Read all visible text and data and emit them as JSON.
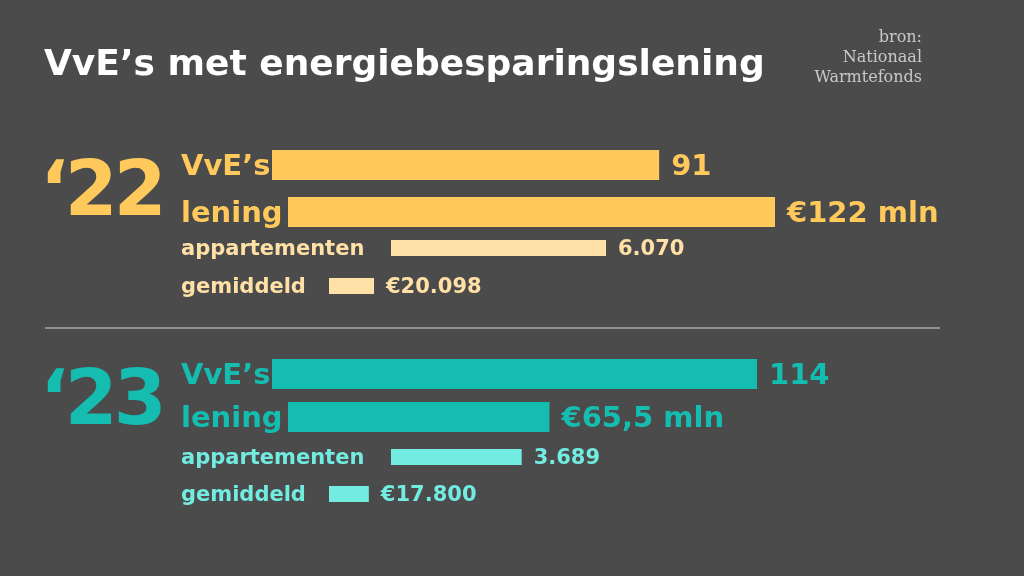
{
  "chart_data": [
    {
      "type": "bar",
      "orientation": "horizontal",
      "title": "VvE’s met energiebesparingslening",
      "subtitle": "‘22",
      "annotations": [
        "bron: Nationaal Warmtefonds"
      ],
      "categories": [
        "VvE’s"
      ],
      "values": [
        91
      ],
      "value_labels": [
        "91"
      ],
      "tick_labels": "y",
      "colors": [
        "#ffc95c"
      ]
    },
    {
      "type": "bar",
      "orientation": "horizontal",
      "categories": [
        "lening"
      ],
      "values": [
        122
      ],
      "value_labels": [
        "€122 mln"
      ],
      "tick_labels": "y",
      "colors": [
        "#ffc95c"
      ]
    },
    {
      "type": "bar",
      "orientation": "horizontal",
      "categories": [
        "appartementen"
      ],
      "values": [
        6070
      ],
      "value_labels": [
        "6.070"
      ],
      "tick_labels": "y",
      "colors": [
        "#ffe0a6"
      ]
    },
    {
      "type": "bar",
      "orientation": "horizontal",
      "categories": [
        "gemiddeld"
      ],
      "values": [
        20098
      ],
      "value_labels": [
        "€20.098"
      ],
      "tick_labels": "y",
      "colors": [
        "#ffe0a6"
      ]
    },
    {
      "type": "bar",
      "orientation": "horizontal",
      "subtitle": "‘23",
      "categories": [
        "VvE’s"
      ],
      "values": [
        114
      ],
      "value_labels": [
        "114"
      ],
      "tick_labels": "y",
      "colors": [
        "#14bdb0"
      ]
    },
    {
      "type": "bar",
      "orientation": "horizontal",
      "categories": [
        "lening"
      ],
      "values": [
        65.5
      ],
      "value_labels": [
        "€65,5 mln"
      ],
      "tick_labels": "y",
      "colors": [
        "#14bdb0"
      ]
    },
    {
      "type": "bar",
      "orientation": "horizontal",
      "categories": [
        "appartementen"
      ],
      "values": [
        3689
      ],
      "value_labels": [
        "3.689"
      ],
      "tick_labels": "y",
      "colors": [
        "#72ebe0"
      ]
    },
    {
      "type": "bar",
      "orientation": "horizontal",
      "categories": [
        "gemiddeld"
      ],
      "values": [
        17800
      ],
      "value_labels": [
        "€17.800"
      ],
      "tick_labels": "y",
      "colors": [
        "#72ebe0"
      ]
    }
  ]
}
